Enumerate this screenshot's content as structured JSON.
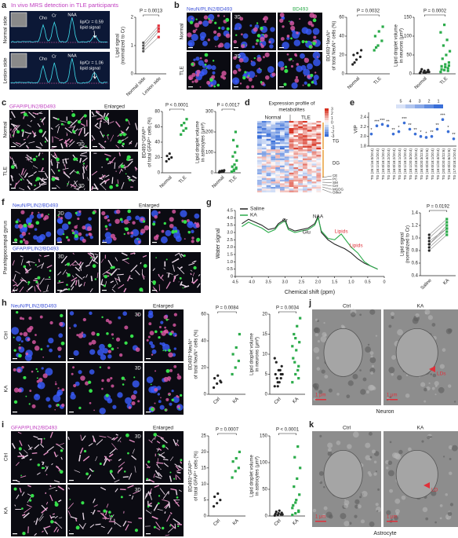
{
  "a": {
    "label": "a",
    "title": "In vivo MRS detection in TLE participants",
    "rows": [
      "Normal side",
      "Lesion side"
    ],
    "peaks": [
      "Cho",
      "Cr",
      "NAA"
    ],
    "notes": [
      [
        "lip/Cr = 0.59",
        "lipid signal"
      ],
      [
        "lip/Cr = 1.06",
        "lipid signal"
      ]
    ],
    "chart": {
      "type": "paired",
      "ylabel": [
        "Lipid signal",
        "(normalized to Cr)"
      ],
      "p": "P = 0.0013",
      "categories": [
        "Normal side",
        "Lesion side"
      ],
      "groups": [
        {
          "color": "#555555",
          "values": [
            0.8,
            0.9,
            1.0,
            1.1
          ]
        },
        {
          "color": "#e0303a",
          "values": [
            1.3,
            1.5,
            1.6,
            1.7
          ]
        }
      ],
      "ylim": [
        0,
        2
      ],
      "yticks": [
        0,
        1,
        2
      ]
    }
  },
  "b": {
    "label": "b",
    "headers": [
      "NeuN/PLIN2/BD493",
      "BD493"
    ],
    "rows": [
      "Normal",
      "TLE"
    ],
    "tag_3d": "3D",
    "charts": [
      {
        "type": "dot",
        "ylabel": [
          "BD493⁺NeuN⁺",
          "of total NeuN⁺ cells (%)"
        ],
        "p": "P = 0.0032",
        "categories": [
          "Normal",
          "TLE"
        ],
        "groups": [
          {
            "color": "#222222",
            "values": [
              10,
              15,
              18,
              20,
              22,
              25,
              12
            ]
          },
          {
            "color": "#2bab4a",
            "values": [
              25,
              30,
              35,
              40,
              45,
              50,
              28
            ]
          }
        ],
        "ylim": [
          0,
          60
        ],
        "yticks": [
          0,
          20,
          40,
          60
        ]
      },
      {
        "type": "dot",
        "ylabel": [
          "Lipid droplet volume",
          "in neurons (μm³)"
        ],
        "p": "P = 0.0002",
        "categories": [
          "Normal",
          "TLE"
        ],
        "groups": [
          {
            "color": "#222222",
            "values": [
              2,
              4,
              5,
              6,
              8,
              10,
              12,
              3,
              5
            ]
          },
          {
            "color": "#2bab4a",
            "values": [
              5,
              10,
              15,
              20,
              25,
              30,
              40,
              50,
              60,
              75,
              90,
              110,
              130,
              8,
              12,
              18,
              22
            ]
          }
        ],
        "ylim": [
          0,
          150
        ],
        "yticks": [
          0,
          50,
          100,
          150
        ]
      }
    ]
  },
  "c": {
    "label": "c",
    "headers": [
      "GFAP/PLIN2/BD493",
      "Enlarged"
    ],
    "rows": [
      "Normal",
      "TLE"
    ],
    "tag_3d": "3D",
    "charts": [
      {
        "type": "dot",
        "ylabel": [
          "BD493⁺GFAP⁺",
          "of total GFAP⁺ cells (%)"
        ],
        "p": "P < 0.0001",
        "categories": [
          "Normal",
          "TLE"
        ],
        "groups": [
          {
            "color": "#222222",
            "values": [
              15,
              18,
              20,
              22,
              25
            ]
          },
          {
            "color": "#2bab4a",
            "values": [
              50,
              55,
              58,
              62,
              65,
              70
            ]
          }
        ],
        "ylim": [
          0,
          80
        ],
        "yticks": [
          0,
          20,
          40,
          60,
          80
        ]
      },
      {
        "type": "dot",
        "ylabel": [
          "Lipid droplet volume",
          "in astrocytes (μm³)"
        ],
        "p": "P = 0.0017",
        "categories": [
          "Normal",
          "TLE"
        ],
        "groups": [
          {
            "color": "#222222",
            "values": [
              2,
              4,
              6,
              8,
              10,
              12,
              5
            ]
          },
          {
            "color": "#2bab4a",
            "values": [
              5,
              10,
              20,
              30,
              40,
              60,
              80,
              100,
              130,
              160,
              200,
              5,
              15,
              25
            ]
          }
        ],
        "ylim": [
          0,
          300
        ],
        "yticks": [
          0,
          100,
          200,
          300
        ]
      }
    ]
  },
  "d": {
    "label": "d",
    "title": [
      "Expression profile of",
      "metabolites"
    ],
    "groups": [
      "Normal",
      "TLE"
    ],
    "colorbar": [
      3,
      2,
      1,
      0,
      -1,
      -2,
      -3
    ],
    "classes": [
      "TG",
      "DG",
      "CE",
      "PC",
      "SM",
      "Cer",
      "MGDG",
      "Other"
    ]
  },
  "e": {
    "label": "e",
    "scale": [
      5,
      4,
      3,
      2,
      1
    ],
    "chart": {
      "ylabel": "VIP",
      "ylim": [
        1.8,
        2.5
      ],
      "yticks": [
        1.8,
        {
          "value": 2,
          "label": "2.0"
        },
        2.2,
        2.4
      ],
      "color": "#3b6fd6",
      "categories": [
        "TG (26:1/16:0/20:4)",
        "TG (16:1/18:1/20:4)",
        "TG (15:0/18:1/20:4)",
        "TG (18:0/18:2/20:4)",
        "TG (16:0/18:2/20:4)",
        "TG (16:0/18:1/20:4)",
        "TG (18:1/18:1/20:4)",
        "TG (18:1/20:3/20:4)",
        "TG (18:2/18:2/20:4)",
        "TG (16:0/20:3/22:6)",
        "TG (16:0/20:4/22:6)",
        "TG (18:0/18:1/20:4)",
        "TG (18:1/20:4/20:4)",
        "TG (20:0/20:4/22:6)",
        "TG (16:0/22:6/22:6)",
        "TG (17:0/18:1/20:4)"
      ],
      "values": [
        2.05,
        2.22,
        2.25,
        2.22,
        2.05,
        2.1,
        2.28,
        2.15,
        2.05,
        2.0,
        1.98,
        2.0,
        2.15,
        2.35,
        2.1,
        1.95
      ],
      "significance": [
        "*",
        "***",
        "***",
        "**",
        "**",
        "*",
        "***",
        "**",
        "**",
        "*",
        "*",
        "**",
        "**",
        "***",
        "*",
        "**"
      ]
    }
  },
  "f": {
    "label": "f",
    "region": "Parahippocampal gyrus",
    "headers": [
      "NeuN/PLIN2/BD493",
      "GFAP/PLIN2/BD493",
      "Enlarged"
    ],
    "tag_3d": "3D"
  },
  "g": {
    "label": "g",
    "spectrum": {
      "xlabel": "Chemical shift (ppm)",
      "ylabel": "Water signal",
      "xlim": [
        4.5,
        0
      ],
      "xticks": [
        4.5,
        {
          "value": 4,
          "label": "4.0"
        },
        3.5,
        {
          "value": 3,
          "label": "3.0"
        },
        2.5,
        {
          "value": 2,
          "label": "2.0"
        },
        1.5,
        {
          "value": 1,
          "label": "1.0"
        },
        0.5,
        0
      ],
      "ylim": [
        0,
        4.5
      ],
      "yticks": [
        0,
        0.5,
        {
          "value": 1,
          "label": "1.0"
        },
        1.5,
        {
          "value": 2,
          "label": "2.0"
        },
        2.5,
        {
          "value": 3,
          "label": "3.0"
        },
        3.5,
        {
          "value": 4,
          "label": "4.0"
        },
        4.5
      ],
      "x": [
        4.3,
        4.1,
        3.9,
        3.7,
        3.5,
        3.3,
        3.2,
        3.0,
        2.9,
        2.7,
        2.5,
        2.3,
        2.1,
        2.0,
        1.9,
        1.7,
        1.5,
        1.3,
        1.2,
        1.0,
        0.8,
        0.6,
        0.4,
        0.2
      ],
      "series": [
        {
          "name": "Saline",
          "color": "#222222",
          "values": [
            3.6,
            3.9,
            3.7,
            3.5,
            3.2,
            3.3,
            3.6,
            3.9,
            3.3,
            3.1,
            3.2,
            3.3,
            3.6,
            4.1,
            3.0,
            2.5,
            2.2,
            2.0,
            1.9,
            1.6,
            1.2,
            0.9,
            0.7,
            0.5
          ]
        },
        {
          "name": "KA",
          "color": "#2bab4a",
          "values": [
            3.4,
            3.7,
            3.5,
            3.3,
            3.0,
            3.2,
            3.5,
            3.8,
            3.2,
            3.0,
            3.1,
            3.2,
            3.5,
            4.0,
            3.1,
            2.6,
            2.5,
            2.9,
            2.6,
            2.0,
            1.6,
            1.0,
            0.7,
            0.5
          ]
        }
      ],
      "peaks": [
        "Cr",
        "NAA",
        "Glu"
      ],
      "lipids": [
        "Lipids",
        "Lipids"
      ]
    },
    "chart": {
      "type": "paired",
      "ylabel": [
        "Lipid signal",
        "(normalized to Cr)"
      ],
      "p": "P = 0.0192",
      "categories": [
        "Saline",
        "KA"
      ],
      "groups": [
        {
          "color": "#222222",
          "values": [
            0.85,
            0.9,
            0.95,
            1.0,
            1.05,
            0.8,
            0.9
          ]
        },
        {
          "color": "#2bab4a",
          "values": [
            1.1,
            1.2,
            1.15,
            1.25,
            1.3,
            1.05,
            1.15
          ]
        }
      ],
      "ylim": [
        0.4,
        1.4
      ],
      "yticks": [
        0.4,
        0.6,
        0.8,
        {
          "value": 1,
          "label": "1.0"
        },
        1.2,
        1.4
      ]
    }
  },
  "h": {
    "label": "h",
    "headers": [
      "NeuN/PLIN2/BD493",
      "Enlarged"
    ],
    "rows": [
      "Ctrl",
      "KA"
    ],
    "tag_3d": "3D",
    "charts": [
      {
        "type": "dot",
        "ylabel": [
          "BD493⁺NeuN⁺",
          "of total NeuN⁺ cells (%)"
        ],
        "p": "P = 0.0084",
        "categories": [
          "Ctrl",
          "KA"
        ],
        "groups": [
          {
            "color": "#222222",
            "values": [
              5,
              8,
              10,
              12,
              14,
              9
            ]
          },
          {
            "color": "#2bab4a",
            "values": [
              15,
              20,
              25,
              30,
              35,
              45
            ]
          }
        ],
        "ylim": [
          0,
          60
        ],
        "yticks": [
          0,
          20,
          40,
          60
        ]
      },
      {
        "type": "dot",
        "ylabel": [
          "Lipid droplet volume",
          "in neurons (μm³)"
        ],
        "p": "P = 0.0034",
        "categories": [
          "Ctrl",
          "KA"
        ],
        "groups": [
          {
            "color": "#222222",
            "values": [
              2,
              3,
              4,
              5,
              6,
              7,
              8,
              3,
              5,
              4,
              6,
              9,
              2,
              5
            ]
          },
          {
            "color": "#2bab4a",
            "values": [
              3,
              5,
              7,
              9,
              11,
              13,
              15,
              17,
              19,
              8,
              6,
              12,
              14,
              4
            ]
          }
        ],
        "ylim": [
          0,
          20
        ],
        "yticks": [
          0,
          5,
          10,
          15,
          20
        ]
      }
    ]
  },
  "i": {
    "label": "i",
    "headers": [
      "GFAP/PLIN2/BD493",
      "Enlarged"
    ],
    "rows": [
      "Ctrl",
      "KA"
    ],
    "tag_3d": "3D",
    "charts": [
      {
        "type": "dot",
        "ylabel": [
          "BD493⁺GFAP⁺",
          "of total GFAP⁺ cells (%)"
        ],
        "p": "P = 0.0007",
        "categories": [
          "Ctrl",
          "KA"
        ],
        "groups": [
          {
            "color": "#222222",
            "values": [
              3,
              4,
              5,
              6,
              7
            ]
          },
          {
            "color": "#2bab4a",
            "values": [
              12,
              14,
              15,
              17,
              18,
              20
            ]
          }
        ],
        "ylim": [
          0,
          25
        ],
        "yticks": [
          0,
          5,
          10,
          15,
          20,
          25
        ]
      },
      {
        "type": "dot",
        "ylabel": [
          "Lipid droplet volume",
          "in astrocytes (μm³)"
        ],
        "p": "P < 0.0001",
        "categories": [
          "Ctrl",
          "KA"
        ],
        "groups": [
          {
            "color": "#222222",
            "values": [
              1,
              2,
              3,
              4,
              5,
              6,
              8,
              10,
              3
            ]
          },
          {
            "color": "#2bab4a",
            "values": [
              2,
              5,
              10,
              20,
              30,
              40,
              55,
              70,
              90,
              110,
              130,
              15,
              25,
              8
            ]
          }
        ],
        "ylim": [
          0,
          150
        ],
        "yticks": [
          0,
          50,
          100,
          150
        ]
      }
    ]
  },
  "j": {
    "label": "j",
    "groups": [
      "Ctrl",
      "KA"
    ],
    "scale_bar": "1 μm",
    "marker": "LDs",
    "cell": "Neuron"
  },
  "k": {
    "label": "k",
    "groups": [
      "Ctrl",
      "KA"
    ],
    "scale_bar": "1 μm",
    "marker": "LD",
    "cell": "Astrocyte"
  }
}
